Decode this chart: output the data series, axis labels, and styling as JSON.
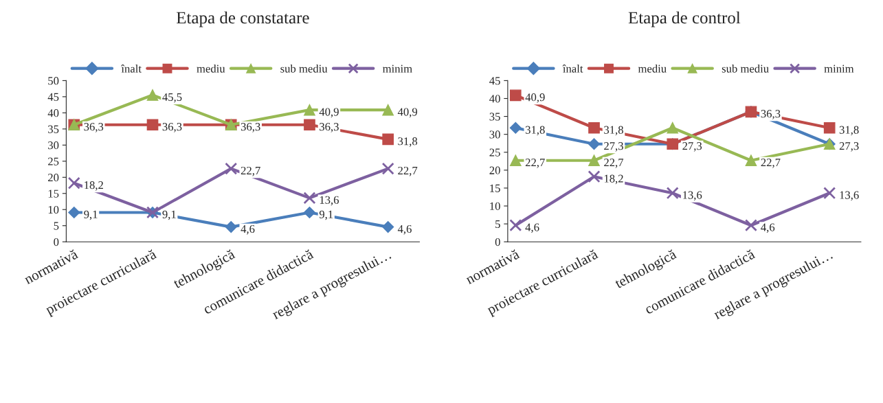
{
  "chart_data": [
    {
      "type": "line",
      "title": "Etapa de constatare",
      "categories": [
        "normativă",
        "proiectare curriculară",
        "tehnologică",
        "comunicare didactică",
        "reglare a progresului…"
      ],
      "ylim": [
        0,
        50
      ],
      "yticks": [
        0,
        5,
        10,
        15,
        20,
        25,
        30,
        35,
        40,
        45,
        50
      ],
      "grid": false,
      "legend": "top",
      "series": [
        {
          "name": "înalt",
          "color": "#4a7ebb",
          "marker": "diamond",
          "values": [
            9.1,
            9.1,
            4.6,
            9.1,
            4.6
          ],
          "value_labels": [
            "9,1",
            "9,1",
            "4,6",
            "9,1",
            "4,6"
          ]
        },
        {
          "name": "mediu",
          "color": "#be4b48",
          "marker": "square",
          "values": [
            36.3,
            36.3,
            36.3,
            36.3,
            31.8
          ],
          "value_labels": [
            "36,3",
            "36,3",
            "36,3",
            "36,3",
            "31,8"
          ]
        },
        {
          "name": "sub mediu",
          "color": "#98b954",
          "marker": "triangle",
          "values": [
            36.3,
            45.5,
            36.3,
            40.9,
            40.9
          ],
          "value_labels": [
            null,
            "45,5",
            null,
            "40,9",
            "40,9"
          ]
        },
        {
          "name": "minim",
          "color": "#7d60a0",
          "marker": "cross",
          "values": [
            18.2,
            9.1,
            22.7,
            13.6,
            22.7
          ],
          "value_labels": [
            "18,2",
            null,
            "22,7",
            "13,6",
            "22,7"
          ]
        }
      ]
    },
    {
      "type": "line",
      "title": "Etapa de control",
      "categories": [
        "normativă",
        "proiectare curriculară",
        "tehnologică",
        "comunicare didactică",
        "reglare a progresului…"
      ],
      "ylim": [
        0,
        45
      ],
      "yticks": [
        0,
        5,
        10,
        15,
        20,
        25,
        30,
        35,
        40,
        45
      ],
      "grid": false,
      "legend": "top",
      "series": [
        {
          "name": "înalt",
          "color": "#4a7ebb",
          "marker": "diamond",
          "values": [
            31.8,
            27.3,
            27.3,
            36.3,
            27.3
          ],
          "value_labels": [
            "31,8",
            "27,3",
            null,
            null,
            "27,3"
          ]
        },
        {
          "name": "mediu",
          "color": "#be4b48",
          "marker": "square",
          "values": [
            40.9,
            31.8,
            27.3,
            36.3,
            31.8
          ],
          "value_labels": [
            "40,9",
            "31,8",
            "27,3",
            "36,3",
            "31,8"
          ]
        },
        {
          "name": "sub mediu",
          "color": "#98b954",
          "marker": "triangle",
          "values": [
            22.7,
            22.7,
            31.8,
            22.7,
            27.3
          ],
          "value_labels": [
            "22,7",
            "22,7",
            null,
            "22,7",
            null
          ]
        },
        {
          "name": "minim",
          "color": "#7d60a0",
          "marker": "cross",
          "values": [
            4.6,
            18.2,
            13.6,
            4.6,
            13.6
          ],
          "value_labels": [
            "4,6",
            "18,2",
            "13,6",
            "4,6",
            "13,6"
          ]
        }
      ]
    }
  ]
}
